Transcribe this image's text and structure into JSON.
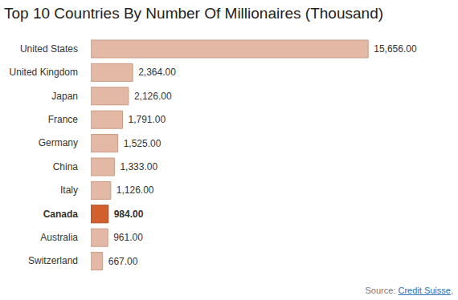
{
  "chart_data": {
    "type": "bar",
    "orientation": "horizontal",
    "title": "Top 10 Countries By Number Of Millionaires (Thousand)",
    "categories": [
      "United States",
      "United Kingdom",
      "Japan",
      "France",
      "Germany",
      "China",
      "Italy",
      "Canada",
      "Australia",
      "Switzerland"
    ],
    "values": [
      15656,
      2364,
      2126,
      1791,
      1525,
      1333,
      1126,
      984,
      961,
      667
    ],
    "value_labels": [
      "15,656.00",
      "2,364.00",
      "2,126.00",
      "1,791.00",
      "1,525.00",
      "1,333.00",
      "1,126.00",
      "984.00",
      "961.00",
      "667.00"
    ],
    "colors": [
      "#e3b9a5",
      "#e3b9a5",
      "#e3b9a5",
      "#e3b9a5",
      "#e3b9a5",
      "#e3b9a5",
      "#e3b9a5",
      "#d2602e",
      "#e3b9a5",
      "#e3b9a5"
    ],
    "xlim": [
      0,
      20000
    ],
    "data_labels": true,
    "tick_labels": "y",
    "grid": false,
    "source": {
      "prefix": "Source:",
      "name": "Credit Suisse",
      "suffix": ","
    }
  }
}
